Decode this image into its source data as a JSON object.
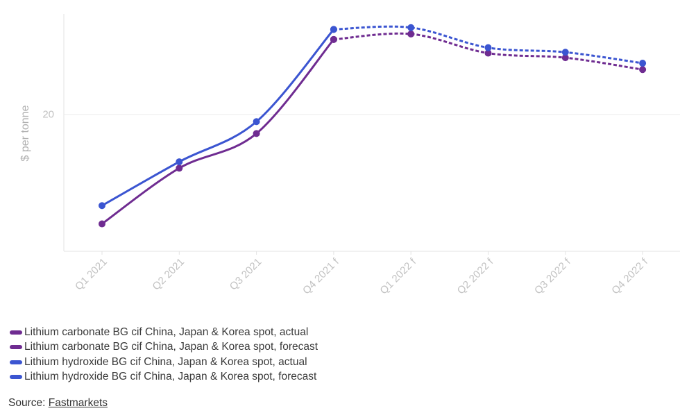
{
  "chart_data": {
    "type": "line",
    "title": "",
    "xlabel": "",
    "ylabel": "$ per tonne",
    "categories": [
      "Q1 2021",
      "Q2 2021",
      "Q3 2021",
      "Q4 2021 f",
      "Q1 2022 f",
      "Q2 2022 f",
      "Q3 2022 f",
      "Q4 2022 f"
    ],
    "yticks": [
      {
        "value": 20,
        "label": "20"
      }
    ],
    "ylim": [
      5,
      31
    ],
    "grid": true,
    "legend_position": "bottom-left",
    "series": [
      {
        "name": "Lithium carbonate BG cif China, Japan & Korea spot, actual",
        "color": "#6f2c91",
        "dashed": false,
        "values": [
          8.0,
          14.1,
          17.9,
          28.2,
          null,
          null,
          null,
          null
        ]
      },
      {
        "name": "Lithium carbonate BG cif China, Japan & Korea spot, forecast",
        "color": "#6f2c91",
        "dashed": true,
        "values": [
          null,
          null,
          null,
          28.2,
          28.8,
          26.7,
          26.2,
          24.9
        ]
      },
      {
        "name": "Lithium hydroxide BG cif China, Japan & Korea spot, actual",
        "color": "#3b55d1",
        "dashed": false,
        "values": [
          10.0,
          14.8,
          19.2,
          29.3,
          null,
          null,
          null,
          null
        ]
      },
      {
        "name": "Lithium hydroxide BG cif China, Japan & Korea spot, forecast",
        "color": "#3b55d1",
        "dashed": true,
        "values": [
          null,
          null,
          null,
          29.3,
          29.5,
          27.3,
          26.8,
          25.6
        ]
      }
    ]
  },
  "source": {
    "prefix": "Source: ",
    "link_text": "Fastmarkets"
  }
}
